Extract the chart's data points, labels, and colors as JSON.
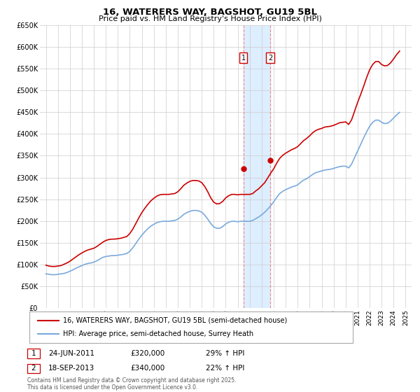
{
  "title": "16, WATERERS WAY, BAGSHOT, GU19 5BL",
  "subtitle": "Price paid vs. HM Land Registry's House Price Index (HPI)",
  "legend_line1": "16, WATERERS WAY, BAGSHOT, GU19 5BL (semi-detached house)",
  "legend_line2": "HPI: Average price, semi-detached house, Surrey Heath",
  "footer": "Contains HM Land Registry data © Crown copyright and database right 2025.\nThis data is licensed under the Open Government Licence v3.0.",
  "annotation1": {
    "num": "1",
    "date": "24-JUN-2011",
    "price": "£320,000",
    "hpi": "29% ↑ HPI",
    "x": 2011.48
  },
  "annotation2": {
    "num": "2",
    "date": "18-SEP-2013",
    "price": "£340,000",
    "hpi": "22% ↑ HPI",
    "x": 2013.71
  },
  "red_color": "#cc0000",
  "blue_color": "#7aaadd",
  "shaded_color": "#ddeeff",
  "vline_color": "#ee8888",
  "grid_color": "#cccccc",
  "ylim": [
    0,
    650000
  ],
  "yticks": [
    0,
    50000,
    100000,
    150000,
    200000,
    250000,
    300000,
    350000,
    400000,
    450000,
    500000,
    550000,
    600000,
    650000
  ],
  "xlim": [
    1994.5,
    2025.5
  ],
  "xticks": [
    1995,
    1996,
    1997,
    1998,
    1999,
    2000,
    2001,
    2002,
    2003,
    2004,
    2005,
    2006,
    2007,
    2008,
    2009,
    2010,
    2011,
    2012,
    2013,
    2014,
    2015,
    2016,
    2017,
    2018,
    2019,
    2020,
    2021,
    2022,
    2023,
    2024,
    2025
  ],
  "hpi_data": {
    "x": [
      1995.0,
      1995.25,
      1995.5,
      1995.75,
      1996.0,
      1996.25,
      1996.5,
      1996.75,
      1997.0,
      1997.25,
      1997.5,
      1997.75,
      1998.0,
      1998.25,
      1998.5,
      1998.75,
      1999.0,
      1999.25,
      1999.5,
      1999.75,
      2000.0,
      2000.25,
      2000.5,
      2000.75,
      2001.0,
      2001.25,
      2001.5,
      2001.75,
      2002.0,
      2002.25,
      2002.5,
      2002.75,
      2003.0,
      2003.25,
      2003.5,
      2003.75,
      2004.0,
      2004.25,
      2004.5,
      2004.75,
      2005.0,
      2005.25,
      2005.5,
      2005.75,
      2006.0,
      2006.25,
      2006.5,
      2006.75,
      2007.0,
      2007.25,
      2007.5,
      2007.75,
      2008.0,
      2008.25,
      2008.5,
      2008.75,
      2009.0,
      2009.25,
      2009.5,
      2009.75,
      2010.0,
      2010.25,
      2010.5,
      2010.75,
      2011.0,
      2011.25,
      2011.5,
      2011.75,
      2012.0,
      2012.25,
      2012.5,
      2012.75,
      2013.0,
      2013.25,
      2013.5,
      2013.75,
      2014.0,
      2014.25,
      2014.5,
      2014.75,
      2015.0,
      2015.25,
      2015.5,
      2015.75,
      2016.0,
      2016.25,
      2016.5,
      2016.75,
      2017.0,
      2017.25,
      2017.5,
      2017.75,
      2018.0,
      2018.25,
      2018.5,
      2018.75,
      2019.0,
      2019.25,
      2019.5,
      2019.75,
      2020.0,
      2020.25,
      2020.5,
      2020.75,
      2021.0,
      2021.25,
      2021.5,
      2021.75,
      2022.0,
      2022.25,
      2022.5,
      2022.75,
      2023.0,
      2023.25,
      2023.5,
      2023.75,
      2024.0,
      2024.25,
      2024.5
    ],
    "y": [
      78000,
      77000,
      76000,
      76000,
      77000,
      78000,
      79000,
      81000,
      84000,
      87000,
      91000,
      94000,
      97000,
      100000,
      102000,
      103000,
      105000,
      108000,
      112000,
      116000,
      118000,
      119000,
      120000,
      120000,
      121000,
      122000,
      123000,
      125000,
      130000,
      138000,
      148000,
      158000,
      167000,
      175000,
      182000,
      188000,
      192000,
      196000,
      198000,
      199000,
      199000,
      199000,
      200000,
      201000,
      204000,
      209000,
      215000,
      219000,
      222000,
      224000,
      224000,
      223000,
      220000,
      213000,
      204000,
      194000,
      186000,
      183000,
      183000,
      187000,
      193000,
      197000,
      199000,
      199000,
      198000,
      199000,
      199000,
      199000,
      199000,
      201000,
      205000,
      209000,
      214000,
      220000,
      227000,
      235000,
      244000,
      254000,
      263000,
      268000,
      272000,
      275000,
      278000,
      280000,
      283000,
      289000,
      294000,
      297000,
      302000,
      307000,
      311000,
      313000,
      315000,
      317000,
      318000,
      319000,
      321000,
      323000,
      325000,
      326000,
      326000,
      322000,
      331000,
      346000,
      361000,
      376000,
      391000,
      405000,
      418000,
      427000,
      432000,
      432000,
      427000,
      424000,
      425000,
      430000,
      437000,
      444000,
      450000
    ]
  },
  "red_data": {
    "x": [
      1995.0,
      1995.25,
      1995.5,
      1995.75,
      1996.0,
      1996.25,
      1996.5,
      1996.75,
      1997.0,
      1997.25,
      1997.5,
      1997.75,
      1998.0,
      1998.25,
      1998.5,
      1998.75,
      1999.0,
      1999.25,
      1999.5,
      1999.75,
      2000.0,
      2000.25,
      2000.5,
      2000.75,
      2001.0,
      2001.25,
      2001.5,
      2001.75,
      2002.0,
      2002.25,
      2002.5,
      2002.75,
      2003.0,
      2003.25,
      2003.5,
      2003.75,
      2004.0,
      2004.25,
      2004.5,
      2004.75,
      2005.0,
      2005.25,
      2005.5,
      2005.75,
      2006.0,
      2006.25,
      2006.5,
      2006.75,
      2007.0,
      2007.25,
      2007.5,
      2007.75,
      2008.0,
      2008.25,
      2008.5,
      2008.75,
      2009.0,
      2009.25,
      2009.5,
      2009.75,
      2010.0,
      2010.25,
      2010.5,
      2010.75,
      2011.0,
      2011.25,
      2011.5,
      2011.75,
      2012.0,
      2012.25,
      2012.5,
      2012.75,
      2013.0,
      2013.25,
      2013.5,
      2013.75,
      2014.0,
      2014.25,
      2014.5,
      2014.75,
      2015.0,
      2015.25,
      2015.5,
      2015.75,
      2016.0,
      2016.25,
      2016.5,
      2016.75,
      2017.0,
      2017.25,
      2017.5,
      2017.75,
      2018.0,
      2018.25,
      2018.5,
      2018.75,
      2019.0,
      2019.25,
      2019.5,
      2019.75,
      2020.0,
      2020.25,
      2020.5,
      2020.75,
      2021.0,
      2021.25,
      2021.5,
      2021.75,
      2022.0,
      2022.25,
      2022.5,
      2022.75,
      2023.0,
      2023.25,
      2023.5,
      2023.75,
      2024.0,
      2024.25,
      2024.5
    ],
    "y": [
      98000,
      96000,
      95000,
      95000,
      96000,
      97000,
      100000,
      103000,
      107000,
      112000,
      117000,
      122000,
      126000,
      130000,
      133000,
      135000,
      137000,
      141000,
      146000,
      151000,
      155000,
      157000,
      158000,
      158000,
      159000,
      160000,
      162000,
      164000,
      171000,
      181000,
      194000,
      207000,
      219000,
      229000,
      238000,
      246000,
      252000,
      257000,
      260000,
      261000,
      261000,
      261000,
      262000,
      263000,
      267000,
      274000,
      282000,
      287000,
      291000,
      293000,
      293000,
      292000,
      288000,
      279000,
      267000,
      253000,
      243000,
      239000,
      240000,
      245000,
      253000,
      258000,
      261000,
      261000,
      260000,
      261000,
      261000,
      261000,
      261000,
      263000,
      269000,
      274000,
      281000,
      288000,
      299000,
      310000,
      320000,
      333000,
      344000,
      351000,
      356000,
      360000,
      364000,
      367000,
      371000,
      378000,
      385000,
      390000,
      396000,
      403000,
      408000,
      411000,
      413000,
      416000,
      417000,
      418000,
      420000,
      423000,
      426000,
      427000,
      428000,
      422000,
      433000,
      453000,
      473000,
      491000,
      510000,
      530000,
      548000,
      560000,
      567000,
      567000,
      560000,
      557000,
      558000,
      564000,
      573000,
      583000,
      591000
    ]
  },
  "sale1_x": 2011.48,
  "sale1_y": 320000,
  "sale2_x": 2013.71,
  "sale2_y": 340000
}
